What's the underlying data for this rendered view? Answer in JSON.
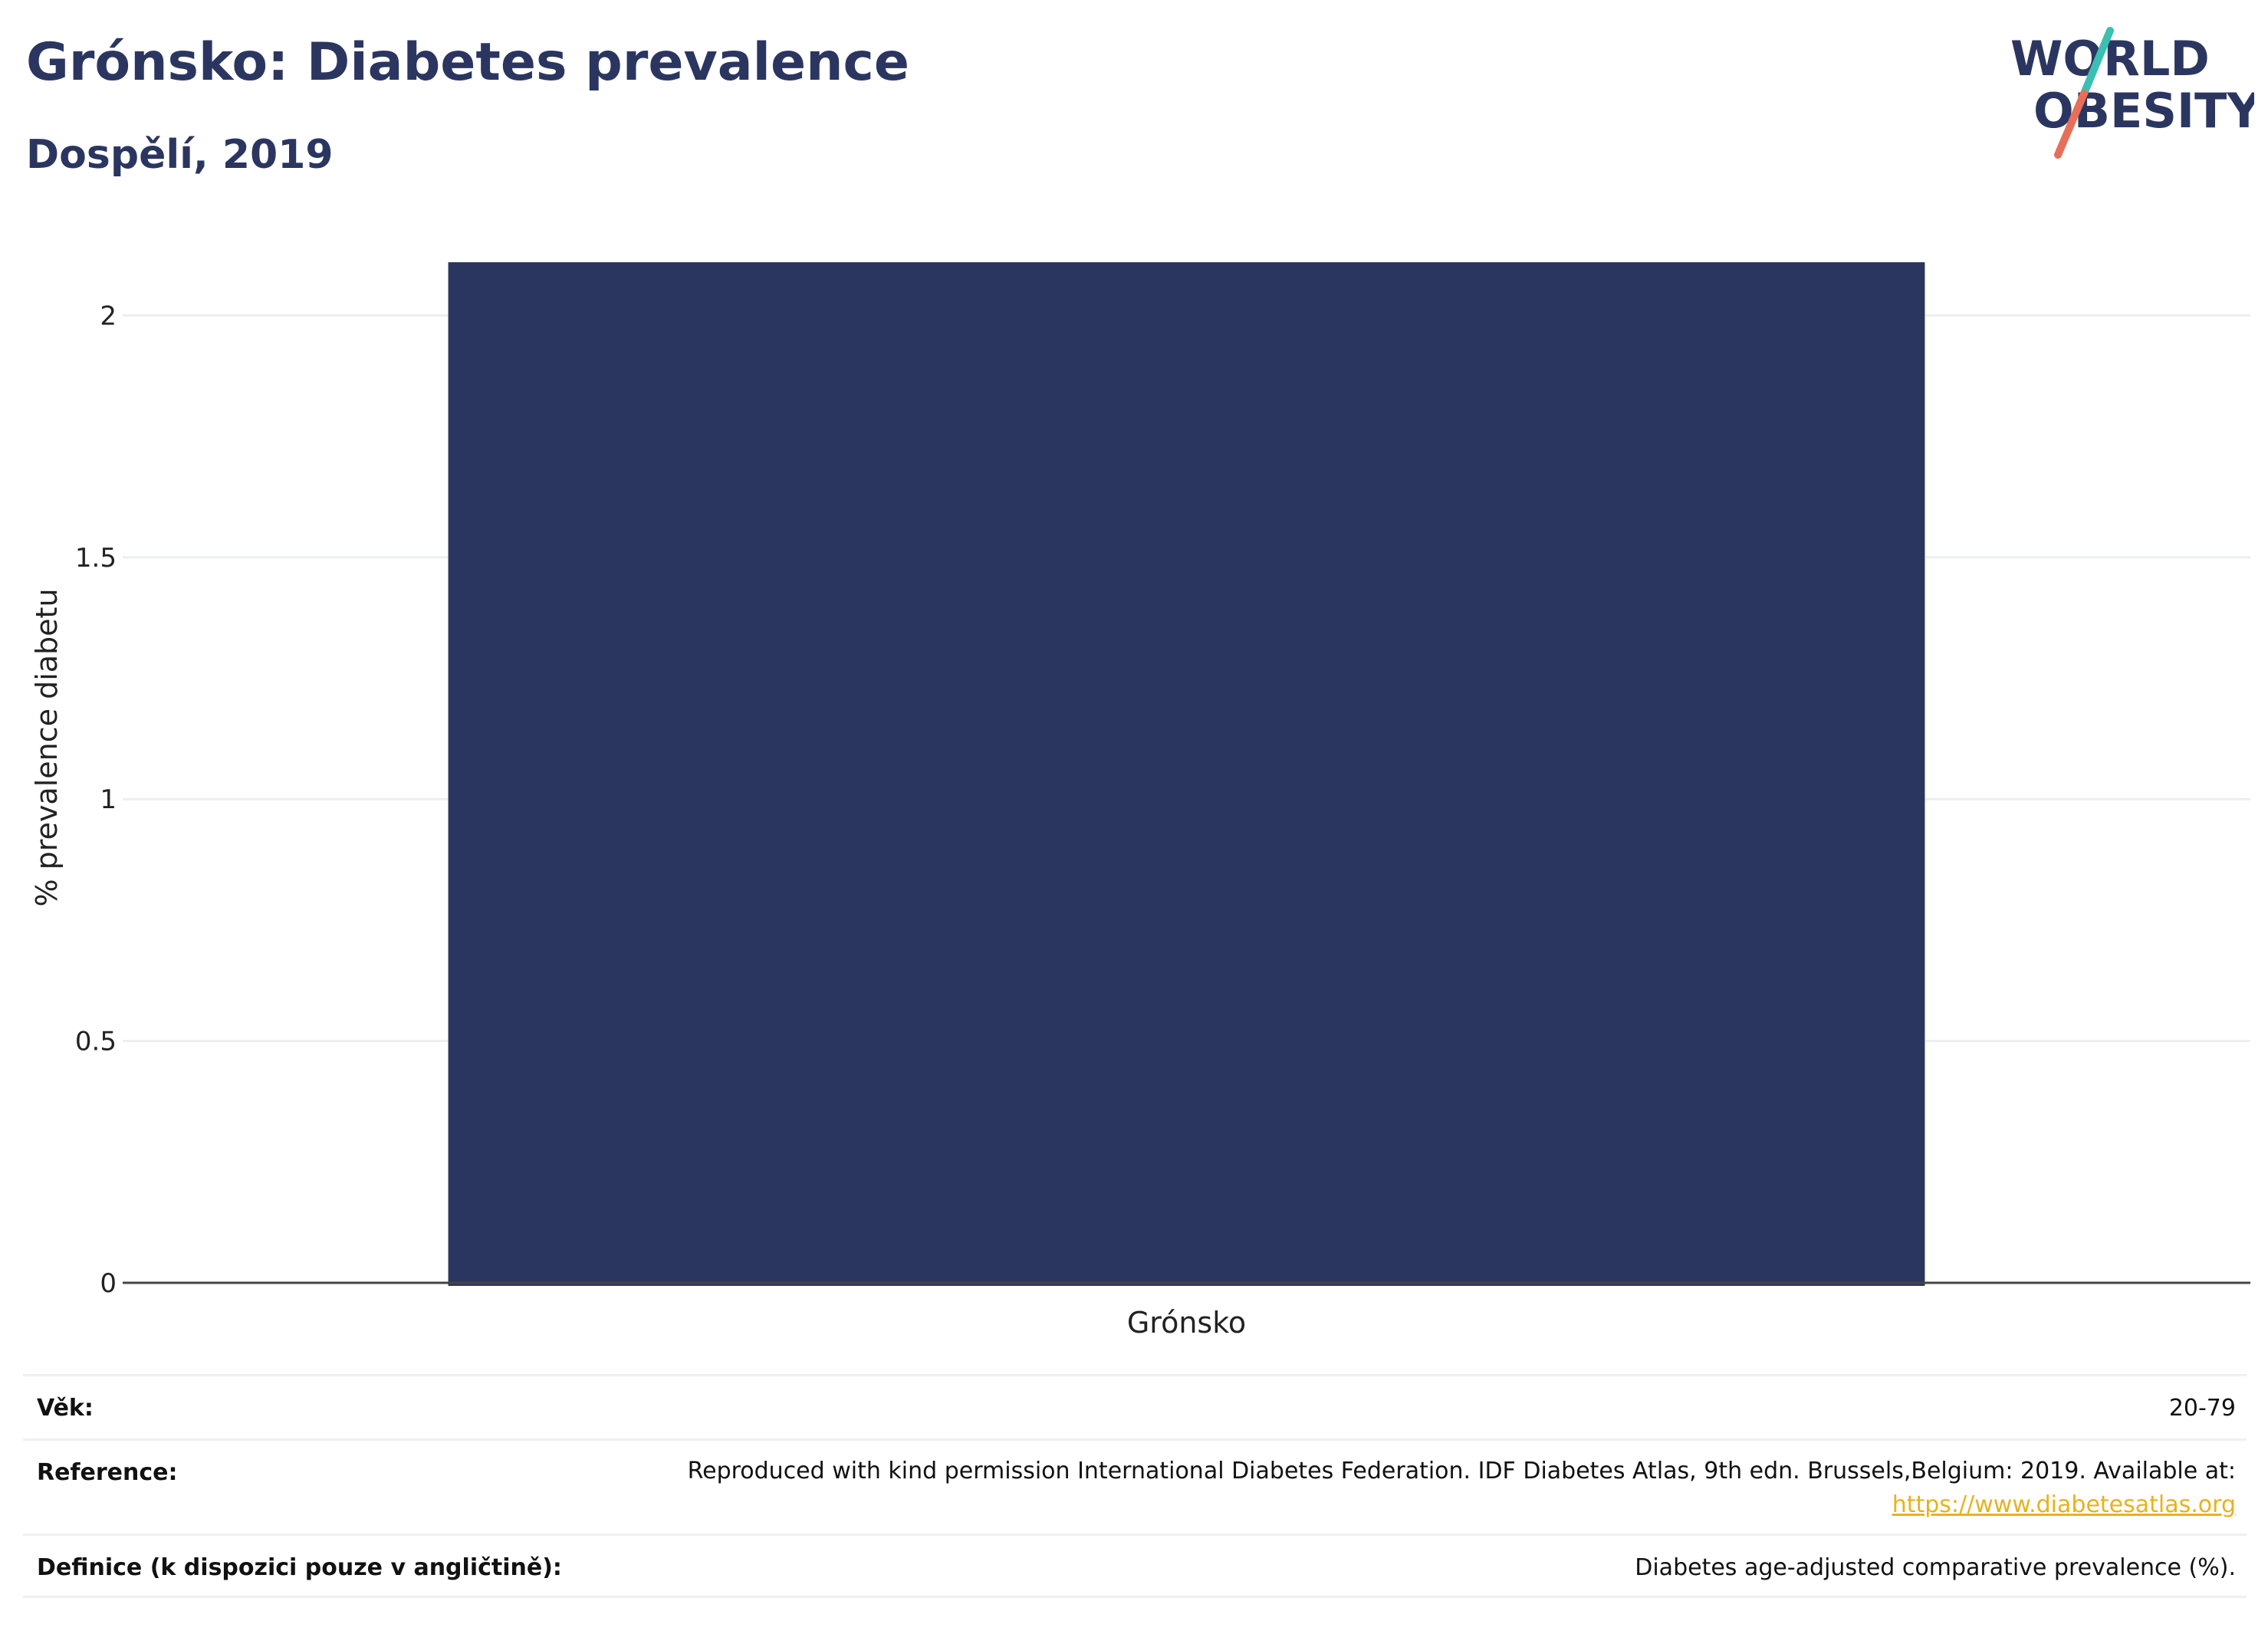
{
  "header": {
    "title": "Grónsko: Diabetes prevalence",
    "subtitle": "Dospělí, 2019"
  },
  "logo": {
    "line1": "WORLD",
    "line2": "OBESITY",
    "slash_colors": [
      "#3bbfb2",
      "#e76f5a"
    ]
  },
  "chart_data": {
    "type": "bar",
    "categories": [
      "Grónsko"
    ],
    "values": [
      2.11
    ],
    "ylabel": "% prevalence diabetu",
    "xlabel": "",
    "ylim": [
      0,
      2.11
    ],
    "yticks": [
      0,
      0.5,
      1,
      1.5,
      2
    ],
    "ytick_labels": [
      "0",
      "0.5",
      "1",
      "1.5",
      "2"
    ],
    "bar_color": "#2b3660",
    "grid": true
  },
  "footer": {
    "rows": [
      {
        "label": "Věk:",
        "value": "20-79"
      },
      {
        "label": "Reference:",
        "value": "Reproduced with kind permission International Diabetes Federation. IDF Diabetes Atlas, 9th edn. Brussels,Belgium: 2019. Available at:",
        "link": "https://www.diabetesatlas.org"
      },
      {
        "label": "Definice (k dispozici pouze v angličtině):",
        "value": "Diabetes age-adjusted comparative prevalence (%)."
      }
    ]
  }
}
